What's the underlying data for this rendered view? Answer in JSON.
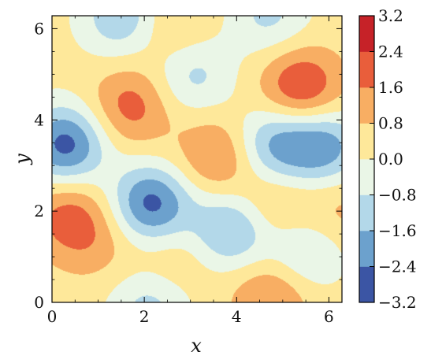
{
  "chart_data": {
    "type": "heatmap",
    "subtype": "filled-contour",
    "title": "",
    "xlabel": "x",
    "ylabel": "y",
    "xlim": [
      0,
      6.2832
    ],
    "ylim": [
      0,
      6.2832
    ],
    "x_ticks": [
      0,
      2,
      4,
      6
    ],
    "x_tick_labels": [
      "0",
      "2",
      "4",
      "6"
    ],
    "y_ticks": [
      0,
      2,
      4,
      6
    ],
    "y_tick_labels": [
      "0",
      "2",
      "4",
      "6"
    ],
    "grid": false,
    "colorbar": {
      "levels": [
        -3.2,
        -2.4,
        -1.6,
        -0.8,
        0.0,
        0.8,
        1.6,
        2.4,
        3.2
      ],
      "tick_labels": [
        "−3.2",
        "−2.4",
        "−1.6",
        "−0.8",
        "0.0",
        "0.8",
        "1.6",
        "2.4",
        "3.2"
      ],
      "colors": [
        "#3b55a4",
        "#6ca1cd",
        "#b3d8e9",
        "#eaf6e7",
        "#fee89a",
        "#f8ae63",
        "#e95e3b",
        "#c62228"
      ],
      "placement": "right"
    },
    "features": [
      {
        "x": 0.3,
        "y": 3.45,
        "value": -2.7
      },
      {
        "x": 2.15,
        "y": 2.15,
        "value": -2.7
      },
      {
        "x": 3.05,
        "y": 5.0,
        "value": -1.1
      },
      {
        "x": 1.5,
        "y": 6.25,
        "value": -1.5
      },
      {
        "x": 4.7,
        "y": 6.3,
        "value": -1.0
      },
      {
        "x": 3.9,
        "y": 1.6,
        "value": -1.9
      },
      {
        "x": 2.1,
        "y": -0.1,
        "value": -1.1
      },
      {
        "x": 4.8,
        "y": 3.45,
        "value": -1.8
      },
      {
        "x": 5.9,
        "y": 3.4,
        "value": -2.0
      },
      {
        "x": 5.5,
        "y": 1.1,
        "value": -1.1
      },
      {
        "x": 1.7,
        "y": 4.3,
        "value": 2.0
      },
      {
        "x": 0.35,
        "y": 1.9,
        "value": 1.9
      },
      {
        "x": 3.6,
        "y": 3.2,
        "value": 1.9
      },
      {
        "x": 5.4,
        "y": 4.7,
        "value": 2.55
      },
      {
        "x": 4.75,
        "y": 0.15,
        "value": 1.8
      },
      {
        "x": 4.75,
        "y": 2.1,
        "value": 1.4
      },
      {
        "x": 2.6,
        "y": 6.0,
        "value": 1.2
      },
      {
        "x": 6.2,
        "y": 2.0,
        "value": 1.2
      },
      {
        "x": 2.6,
        "y": 1.0,
        "value": 1.0
      },
      {
        "x": 1.0,
        "y": 1.3,
        "value": 1.1
      }
    ]
  }
}
